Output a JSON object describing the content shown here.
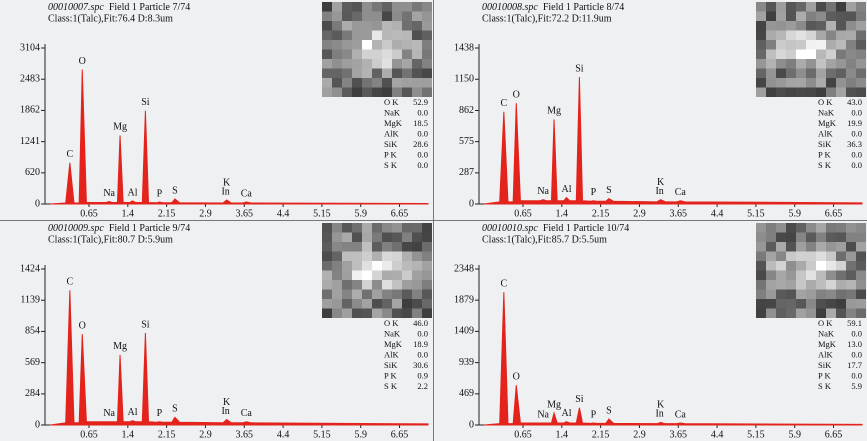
{
  "chart_data": [
    {
      "type": "area",
      "file": "00010007.spc",
      "title": "Field 1 Particle 7/74",
      "subtitle": "Class:1(Talc),Fit:76.4  D:8.3um",
      "color": "#e3231c",
      "x": [
        -0.1,
        0.2,
        0.28,
        0.36,
        0.46,
        0.52,
        0.6,
        0.98,
        1.04,
        1.1,
        1.2,
        1.25,
        1.31,
        1.44,
        1.49,
        1.55,
        1.68,
        1.74,
        1.8,
        1.96,
        2.01,
        2.07,
        2.25,
        2.31,
        2.4,
        3.24,
        3.31,
        3.4,
        3.62,
        3.69,
        3.78,
        7.2
      ],
      "values": [
        0,
        20,
        820,
        20,
        20,
        2675,
        30,
        30,
        50,
        30,
        30,
        1366,
        30,
        30,
        60,
        30,
        30,
        1855,
        30,
        25,
        40,
        25,
        25,
        100,
        25,
        20,
        80,
        20,
        20,
        40,
        20,
        10
      ],
      "xlim": [
        -0.2,
        7.2
      ],
      "xticks": [
        0.65,
        1.4,
        2.15,
        2.9,
        3.65,
        4.4,
        5.15,
        5.9,
        6.65
      ],
      "ylim": [
        0,
        3104
      ],
      "yticks": [
        0,
        620,
        1241,
        1862,
        2483,
        3104
      ],
      "peak_labels": [
        {
          "text": "C",
          "x": 0.28
        },
        {
          "text": "O",
          "x": 0.52
        },
        {
          "text": "Na",
          "x": 1.04
        },
        {
          "text": "Mg",
          "x": 1.25
        },
        {
          "text": "Al",
          "x": 1.49
        },
        {
          "text": "Si",
          "x": 1.74
        },
        {
          "text": "P",
          "x": 2.01
        },
        {
          "text": "S",
          "x": 2.31
        },
        {
          "text": "In",
          "x": 3.29
        },
        {
          "text": "K",
          "x": 3.31
        },
        {
          "text": "Ca",
          "x": 3.69
        }
      ],
      "composition": {
        "elements": [
          "O K",
          "NaK",
          "MgK",
          "AlK",
          "SiK",
          "P K",
          "S K"
        ],
        "values": [
          "52.9",
          "0.0",
          "18.5",
          "0.0",
          "28.6",
          "0.0",
          "0.0"
        ]
      }
    },
    {
      "type": "area",
      "file": "00010008.spc",
      "title": "Field 1 Particle 8/74",
      "subtitle": "Class:1(Talc),Fit:72.2  D:11.9um",
      "color": "#e3231c",
      "x": [
        -0.1,
        0.2,
        0.28,
        0.36,
        0.46,
        0.52,
        0.6,
        0.98,
        1.04,
        1.1,
        1.2,
        1.25,
        1.31,
        1.44,
        1.49,
        1.55,
        1.68,
        1.74,
        1.8,
        1.96,
        2.01,
        2.07,
        2.25,
        2.31,
        2.4,
        3.24,
        3.31,
        3.4,
        3.62,
        3.69,
        3.78,
        7.2
      ],
      "values": [
        0,
        20,
        850,
        20,
        20,
        930,
        30,
        30,
        40,
        30,
        30,
        780,
        30,
        30,
        60,
        30,
        30,
        1170,
        30,
        25,
        30,
        25,
        25,
        50,
        25,
        20,
        40,
        20,
        20,
        30,
        20,
        10
      ],
      "xlim": [
        -0.2,
        7.2
      ],
      "xticks": [
        0.65,
        1.4,
        2.15,
        2.9,
        3.65,
        4.4,
        5.15,
        5.9,
        6.65
      ],
      "ylim": [
        0,
        1438
      ],
      "yticks": [
        0,
        287,
        575,
        862,
        1150,
        1438
      ],
      "peak_labels": [
        {
          "text": "C",
          "x": 0.28
        },
        {
          "text": "O",
          "x": 0.52
        },
        {
          "text": "Na",
          "x": 1.04
        },
        {
          "text": "Mg",
          "x": 1.25
        },
        {
          "text": "Al",
          "x": 1.49
        },
        {
          "text": "Si",
          "x": 1.74
        },
        {
          "text": "P",
          "x": 2.01
        },
        {
          "text": "S",
          "x": 2.31
        },
        {
          "text": "In",
          "x": 3.29
        },
        {
          "text": "K",
          "x": 3.31
        },
        {
          "text": "Ca",
          "x": 3.69
        }
      ],
      "composition": {
        "elements": [
          "O K",
          "NaK",
          "MgK",
          "AlK",
          "SiK",
          "P K",
          "S K"
        ],
        "values": [
          "43.0",
          "0.0",
          "19.9",
          "0.0",
          "36.3",
          "0.0",
          "0.0"
        ]
      }
    },
    {
      "type": "area",
      "file": "00010009.spc",
      "title": "Field 1 Particle 9/74",
      "subtitle": "Class:1(Talc),Fit:80.7  D:5.9um",
      "color": "#e3231c",
      "x": [
        -0.1,
        0.2,
        0.28,
        0.36,
        0.46,
        0.52,
        0.6,
        0.98,
        1.04,
        1.1,
        1.2,
        1.25,
        1.31,
        1.44,
        1.49,
        1.55,
        1.68,
        1.74,
        1.8,
        1.96,
        2.01,
        2.07,
        2.25,
        2.31,
        2.4,
        3.24,
        3.31,
        3.4,
        3.62,
        3.69,
        3.78,
        7.2
      ],
      "values": [
        0,
        20,
        1230,
        20,
        20,
        830,
        30,
        30,
        30,
        30,
        30,
        640,
        30,
        30,
        40,
        30,
        30,
        840,
        30,
        25,
        30,
        25,
        25,
        70,
        25,
        20,
        50,
        20,
        20,
        30,
        20,
        10
      ],
      "xlim": [
        -0.2,
        7.2
      ],
      "xticks": [
        0.65,
        1.4,
        2.15,
        2.9,
        3.65,
        4.4,
        5.15,
        5.9,
        6.65
      ],
      "ylim": [
        0,
        1424
      ],
      "yticks": [
        0,
        284,
        569,
        854,
        1139,
        1424
      ],
      "peak_labels": [
        {
          "text": "C",
          "x": 0.28
        },
        {
          "text": "O",
          "x": 0.52
        },
        {
          "text": "Na",
          "x": 1.04
        },
        {
          "text": "Mg",
          "x": 1.25
        },
        {
          "text": "Al",
          "x": 1.49
        },
        {
          "text": "Si",
          "x": 1.74
        },
        {
          "text": "P",
          "x": 2.01
        },
        {
          "text": "S",
          "x": 2.31
        },
        {
          "text": "In",
          "x": 3.29
        },
        {
          "text": "K",
          "x": 3.31
        },
        {
          "text": "Ca",
          "x": 3.69
        }
      ],
      "composition": {
        "elements": [
          "O K",
          "NaK",
          "MgK",
          "AlK",
          "SiK",
          "P K",
          "S K"
        ],
        "values": [
          "46.0",
          "0.0",
          "18.9",
          "0.0",
          "30.6",
          "0.9",
          "2.2"
        ]
      }
    },
    {
      "type": "area",
      "file": "00010010.spc",
      "title": "Field 1 Particle 10/74",
      "subtitle": "Class:1(Talc),Fit:85.7  D:5.5um",
      "color": "#e3231c",
      "x": [
        -0.1,
        0.2,
        0.28,
        0.36,
        0.46,
        0.52,
        0.6,
        0.98,
        1.04,
        1.1,
        1.2,
        1.25,
        1.31,
        1.44,
        1.49,
        1.55,
        1.68,
        1.74,
        1.8,
        1.96,
        2.01,
        2.07,
        2.25,
        2.31,
        2.4,
        3.24,
        3.31,
        3.4,
        3.62,
        3.69,
        3.78,
        7.2
      ],
      "values": [
        0,
        20,
        2000,
        20,
        20,
        600,
        30,
        30,
        30,
        30,
        30,
        180,
        30,
        30,
        50,
        30,
        30,
        260,
        30,
        25,
        30,
        25,
        25,
        90,
        25,
        20,
        40,
        20,
        20,
        30,
        20,
        10
      ],
      "xlim": [
        -0.2,
        7.2
      ],
      "xticks": [
        0.65,
        1.4,
        2.15,
        2.9,
        3.65,
        4.4,
        5.15,
        5.9,
        6.65
      ],
      "ylim": [
        0,
        2348
      ],
      "yticks": [
        0,
        469,
        939,
        1409,
        1879,
        2348
      ],
      "peak_labels": [
        {
          "text": "C",
          "x": 0.28
        },
        {
          "text": "O",
          "x": 0.52
        },
        {
          "text": "Na",
          "x": 1.04
        },
        {
          "text": "Mg",
          "x": 1.25
        },
        {
          "text": "Al",
          "x": 1.49
        },
        {
          "text": "Si",
          "x": 1.74
        },
        {
          "text": "P",
          "x": 2.01
        },
        {
          "text": "S",
          "x": 2.31
        },
        {
          "text": "In",
          "x": 3.29
        },
        {
          "text": "K",
          "x": 3.31
        },
        {
          "text": "Ca",
          "x": 3.69
        }
      ],
      "composition": {
        "elements": [
          "O K",
          "NaK",
          "MgK",
          "AlK",
          "SiK",
          "P K",
          "S K"
        ],
        "values": [
          "59.1",
          "0.0",
          "13.0",
          "0.0",
          "17.7",
          "0.0",
          "5.9"
        ]
      }
    }
  ]
}
